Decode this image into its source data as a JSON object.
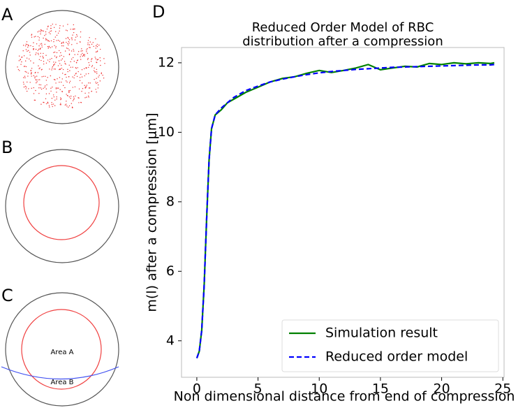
{
  "panel_labels": [
    "A",
    "B",
    "C",
    "D"
  ],
  "annotations": [
    "Area A",
    "Area B"
  ],
  "chart_data": {
    "type": "line",
    "title": [
      "Reduced Order Model of RBC",
      "distribution after a compression"
    ],
    "xlabel": "Non dimensional distance from end of compression",
    "ylabel": "m(l) after a compression [μm]",
    "x": [
      0,
      0.2,
      0.4,
      0.6,
      0.8,
      1.0,
      1.2,
      1.5,
      2,
      2.5,
      3,
      4,
      5,
      6,
      7,
      8,
      9,
      10,
      11,
      12,
      13,
      14,
      15,
      16,
      17,
      18,
      19,
      20,
      21,
      22,
      23,
      24,
      24.3
    ],
    "series": [
      {
        "name": "Simulation result",
        "color": "#008000",
        "dash": false,
        "values": [
          3.5,
          3.7,
          4.3,
          5.6,
          7.5,
          9.2,
          10.1,
          10.5,
          10.65,
          10.85,
          10.95,
          11.15,
          11.3,
          11.45,
          11.55,
          11.6,
          11.7,
          11.78,
          11.72,
          11.78,
          11.85,
          11.95,
          11.8,
          11.85,
          11.9,
          11.88,
          11.98,
          11.95,
          12.0,
          11.97,
          12.0,
          11.98,
          12.0
        ]
      },
      {
        "name": "Reduced order model",
        "color": "#0000ff",
        "dash": true,
        "values": [
          3.5,
          3.7,
          4.3,
          5.6,
          7.5,
          9.2,
          10.1,
          10.5,
          10.7,
          10.85,
          11.0,
          11.2,
          11.33,
          11.45,
          11.53,
          11.6,
          11.66,
          11.71,
          11.75,
          11.78,
          11.81,
          11.83,
          11.85,
          11.87,
          11.88,
          11.89,
          11.9,
          11.91,
          11.92,
          11.93,
          11.94,
          11.94,
          11.95
        ]
      }
    ],
    "xlim": [
      -1.25,
      25.1
    ],
    "ylim": [
      2.95,
      12.44
    ],
    "xticks": [
      0,
      5,
      10,
      15,
      20,
      25
    ],
    "yticks": [
      4,
      6,
      8,
      10,
      12
    ],
    "legend": "lower right"
  }
}
